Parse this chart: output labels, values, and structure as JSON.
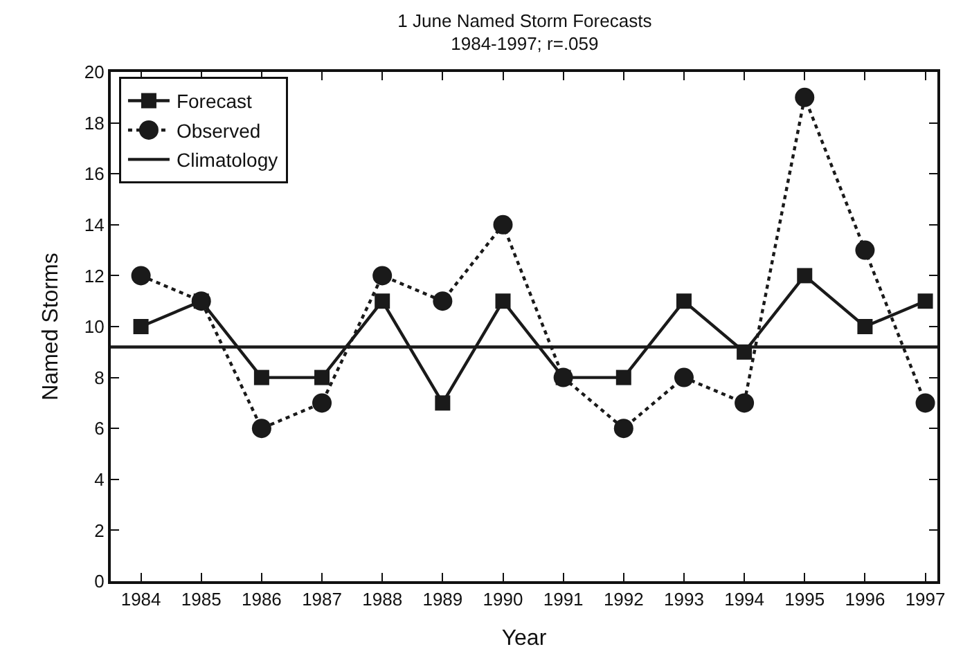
{
  "chart_data": {
    "type": "line",
    "title": "1 June Named Storm Forecasts",
    "subtitle": "1984-1997; r=.059",
    "xlabel": "Year",
    "ylabel": "Named Storms",
    "xlim": [
      1983.5,
      1997.2
    ],
    "xticks": [
      1984,
      1985,
      1986,
      1987,
      1988,
      1989,
      1990,
      1991,
      1992,
      1993,
      1994,
      1995,
      1996,
      1997
    ],
    "ylim": [
      0,
      20
    ],
    "yticks": [
      0,
      2,
      4,
      6,
      8,
      10,
      12,
      14,
      16,
      18,
      20
    ],
    "legend": "top left",
    "series": [
      {
        "name": "Forecast",
        "color": "#1a1a1a",
        "marker": "square",
        "line_style": "solid",
        "x": [
          1984,
          1985,
          1986,
          1987,
          1988,
          1989,
          1990,
          1991,
          1992,
          1993,
          1994,
          1995,
          1996,
          1997
        ],
        "values": [
          10,
          11,
          8,
          8,
          11,
          7,
          11,
          8,
          8,
          11,
          9,
          12,
          10,
          11
        ]
      },
      {
        "name": "Observed",
        "color": "#1a1a1a",
        "marker": "circle",
        "line_style": "dotted",
        "x": [
          1984,
          1985,
          1986,
          1987,
          1988,
          1989,
          1990,
          1991,
          1992,
          1993,
          1994,
          1995,
          1996,
          1997
        ],
        "values": [
          12,
          11,
          6,
          7,
          12,
          11,
          14,
          8,
          6,
          8,
          7,
          19,
          13,
          7
        ]
      },
      {
        "name": "Climatology",
        "color": "#1a1a1a",
        "marker": "none",
        "line_style": "solid",
        "x": [
          1983.5,
          1997.2
        ],
        "values": [
          9.2,
          9.2
        ]
      }
    ]
  }
}
